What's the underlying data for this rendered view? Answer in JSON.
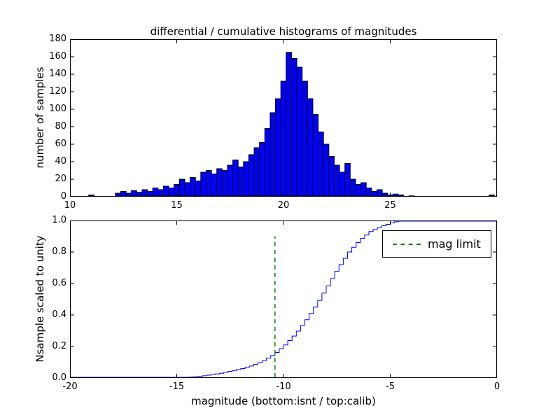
{
  "chart_data": [
    {
      "type": "bar",
      "subtype": "histogram",
      "title": "differential / cumulative histograms of magnitudes",
      "ylabel": "number of samples",
      "xlim": [
        10,
        30
      ],
      "ylim": [
        0,
        180
      ],
      "xtick_values": [
        10,
        15,
        20,
        25
      ],
      "xtick_labels": [
        "10",
        "15",
        "20",
        "25"
      ],
      "ytick_values": [
        0,
        20,
        40,
        60,
        80,
        100,
        120,
        140,
        160,
        180
      ],
      "ytick_labels": [
        "0",
        "20",
        "40",
        "60",
        "80",
        "100",
        "120",
        "140",
        "160",
        "180"
      ],
      "bar_color": "#0000ff",
      "bar_edge_color": "#000000",
      "bin_start": 10.875,
      "bin_width": 0.25,
      "values": [
        2,
        0,
        0,
        0,
        0,
        4,
        6,
        4,
        7,
        5,
        8,
        6,
        10,
        8,
        12,
        10,
        14,
        20,
        16,
        22,
        18,
        28,
        30,
        26,
        32,
        30,
        36,
        42,
        34,
        40,
        48,
        56,
        62,
        78,
        96,
        112,
        132,
        165,
        158,
        148,
        132,
        112,
        94,
        74,
        60,
        46,
        36,
        28,
        38,
        20,
        14,
        16,
        10,
        6,
        8,
        4,
        2,
        3,
        2,
        0,
        1,
        0,
        0,
        0,
        0,
        0,
        0,
        0,
        0,
        0,
        0,
        0,
        0,
        0,
        0,
        2
      ]
    },
    {
      "type": "line",
      "subtype": "cumulative-step",
      "ylabel": "Nsample scaled to unity",
      "xlabel": "magnitude (bottom:isnt / top:calib)",
      "xlim": [
        -20,
        0
      ],
      "ylim": [
        0.0,
        1.0
      ],
      "xtick_values": [
        -20,
        -15,
        -10,
        -5,
        0
      ],
      "xtick_labels": [
        "-20",
        "-15",
        "-10",
        "-5",
        "0"
      ],
      "ytick_values": [
        0.0,
        0.2,
        0.4,
        0.6,
        0.8,
        1.0
      ],
      "ytick_labels": [
        "0.0",
        "0.2",
        "0.4",
        "0.6",
        "0.8",
        "1.0"
      ],
      "line_color": "#0000ff",
      "step_width": 0.2,
      "step_end": -4.6,
      "control_points": {
        "x": [
          -15,
          -14.5,
          -14,
          -13.5,
          -13,
          -12.5,
          -12,
          -11.5,
          -11,
          -10.5,
          -10,
          -9.5,
          -9,
          -8.5,
          -8,
          -7.5,
          -7,
          -6.5,
          -6,
          -5.5,
          -5,
          -4.6
        ],
        "y": [
          0,
          0.005,
          0.01,
          0.02,
          0.03,
          0.045,
          0.06,
          0.08,
          0.11,
          0.15,
          0.21,
          0.28,
          0.37,
          0.47,
          0.585,
          0.7,
          0.8,
          0.875,
          0.93,
          0.962,
          0.985,
          1.0
        ]
      },
      "mag_limit": {
        "x": -10.4,
        "ymin": 0.0,
        "ymax": 0.9,
        "color": "#008000",
        "style": "dashed",
        "label": "mag limit"
      },
      "legend": {
        "label": "mag limit",
        "position": "upper right"
      }
    }
  ]
}
